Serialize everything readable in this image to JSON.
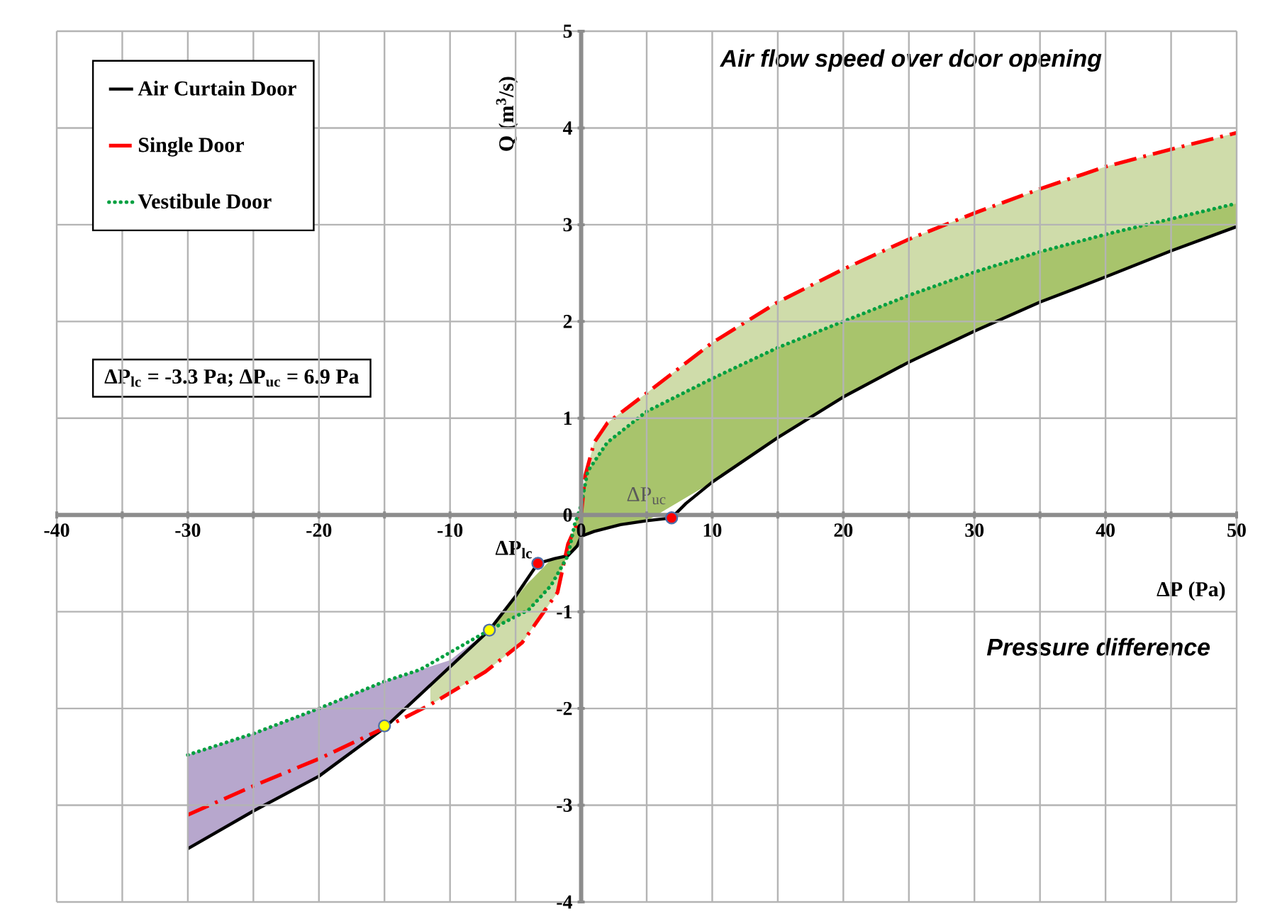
{
  "chart_data": {
    "type": "line",
    "title": "Air flow speed over door opening",
    "xlabel": "ΔP (Pa)",
    "ylabel": "Q (m$^{3}$/s)",
    "xlim": [
      -40,
      50
    ],
    "ylim": [
      -4,
      5
    ],
    "xticks": [
      -40,
      {
        "value": -35,
        "label": null
      },
      -30,
      {
        "value": -25,
        "label": null
      },
      -20,
      {
        "value": -15,
        "label": null
      },
      -10,
      {
        "value": -5,
        "label": null
      },
      0,
      {
        "value": 5,
        "label": null
      },
      10,
      {
        "value": 15,
        "label": null
      },
      20,
      {
        "value": 25,
        "label": null
      },
      30,
      {
        "value": 35,
        "label": null
      },
      40,
      {
        "value": 45,
        "label": null
      },
      50
    ],
    "yticks": [
      -4,
      -3,
      -2,
      -1,
      0,
      1,
      2,
      3,
      4,
      5
    ],
    "grid": true,
    "legend": "top left",
    "series": [
      {
        "name": "Air Curtain Door",
        "color": "#000000",
        "line_style": "solid",
        "x": [
          -30,
          -25,
          -20,
          -15,
          -10,
          -7,
          -5,
          -3.3,
          -2,
          -1,
          -0.3,
          0,
          1,
          3,
          5,
          6.9,
          8,
          10,
          15,
          20,
          25,
          30,
          35,
          40,
          45,
          50
        ],
        "values": [
          -3.45,
          -3.06,
          -2.7,
          -2.2,
          -1.57,
          -1.19,
          -0.84,
          -0.5,
          -0.45,
          -0.42,
          -0.32,
          -0.22,
          -0.17,
          -0.1,
          -0.06,
          -0.03,
          0.12,
          0.34,
          0.8,
          1.22,
          1.58,
          1.9,
          2.2,
          2.46,
          2.73,
          2.98
        ],
        "lower": [
          -3.45,
          -3.06,
          -2.7,
          -2.2,
          -1.57,
          -1.19,
          null,
          null,
          null,
          null,
          null,
          null,
          null,
          null,
          null,
          null,
          null,
          null,
          null,
          null,
          null,
          null,
          null,
          null,
          null,
          null
        ],
        "upper": [
          -2.48,
          -2.26,
          -2.0,
          -1.72,
          -1.5,
          -1.19,
          null,
          null,
          null,
          null,
          null,
          null,
          null,
          null,
          null,
          null,
          null,
          null,
          null,
          null,
          null,
          null,
          null,
          null,
          null,
          null
        ]
      },
      {
        "name": "Single Door",
        "color": "#ff0000",
        "line_style": "dashed",
        "x": [
          -30,
          -25,
          -20,
          -15,
          -11.5,
          -7.3,
          -4.5,
          -1.8,
          -1,
          0,
          0.3,
          1,
          2,
          5,
          10,
          15,
          20,
          25,
          30,
          35,
          40,
          45,
          50
        ],
        "values": [
          -3.1,
          -2.8,
          -2.52,
          -2.2,
          -1.96,
          -1.62,
          -1.32,
          -0.8,
          -0.3,
          0,
          0.4,
          0.75,
          0.95,
          1.26,
          1.78,
          2.2,
          2.54,
          2.85,
          3.12,
          3.37,
          3.6,
          3.78,
          3.95
        ],
        "lower": [
          null,
          null,
          null,
          null,
          -1.76,
          -1.23,
          -0.75,
          -0.44,
          -0.42,
          -0.22,
          -0.2,
          -0.17,
          -0.13,
          -0.06,
          0.34,
          0.8,
          1.22,
          1.58,
          1.9,
          2.2,
          2.46,
          2.73,
          2.98
        ],
        "upper": [
          null,
          null,
          null,
          null,
          -1.96,
          -1.62,
          -1.32,
          -0.8,
          -0.3,
          0,
          0.4,
          0.75,
          0.95,
          1.26,
          1.78,
          2.2,
          2.54,
          2.85,
          3.12,
          3.37,
          3.6,
          3.78,
          3.95
        ]
      },
      {
        "name": "Vestibule Door",
        "color": "#00a040",
        "line_style": "dotted",
        "x": [
          -30,
          -25,
          -20,
          -15,
          -12.3,
          -8.7,
          -7,
          -4,
          -2.3,
          -1,
          -0.5,
          0,
          0.5,
          1,
          2,
          5,
          10,
          15,
          20,
          25,
          30,
          35,
          40,
          45,
          50
        ],
        "values": [
          -2.48,
          -2.26,
          -2.0,
          -1.72,
          -1.6,
          -1.32,
          -1.19,
          -0.98,
          -0.73,
          -0.42,
          -0.1,
          0.1,
          0.45,
          0.55,
          0.75,
          1.07,
          1.41,
          1.73,
          2.0,
          2.27,
          2.51,
          2.72,
          2.9,
          3.06,
          3.22
        ],
        "lower": [
          null,
          null,
          null,
          null,
          null,
          null,
          -1.19,
          -0.7,
          -0.46,
          -0.42,
          -0.35,
          -0.22,
          -0.19,
          -0.17,
          -0.13,
          -0.06,
          0.34,
          0.8,
          1.22,
          1.58,
          1.9,
          2.2,
          2.46,
          2.73,
          2.98
        ],
        "upper": [
          null,
          null,
          null,
          null,
          null,
          null,
          -1.19,
          -0.98,
          -0.73,
          -0.42,
          -0.1,
          0.1,
          0.45,
          0.55,
          0.75,
          1.07,
          1.41,
          1.73,
          2.0,
          2.27,
          2.51,
          2.72,
          2.9,
          3.06,
          3.22
        ]
      },
      {
        "type": "scatter",
        "color": "#ff0000",
        "marker": "circle",
        "x": [
          -3.3,
          6.9
        ],
        "values": [
          -0.5,
          -0.03
        ]
      },
      {
        "type": "scatter",
        "color": "#ffff00",
        "marker": "circle",
        "x": [
          -7,
          -15
        ],
        "values": [
          -1.19,
          -2.18
        ]
      }
    ],
    "annotations": [
      "ΔP$_{lc}$ = -3.3 Pa; ΔP$_{uc}$ = 6.9 Pa",
      "Pressure difference",
      {
        "text": "ΔP$_{lc}$",
        "x": -3.3,
        "y": -0.5
      },
      {
        "text": "ΔP$_{uc}$",
        "x": 6.9,
        "y": -0.03
      }
    ]
  }
}
